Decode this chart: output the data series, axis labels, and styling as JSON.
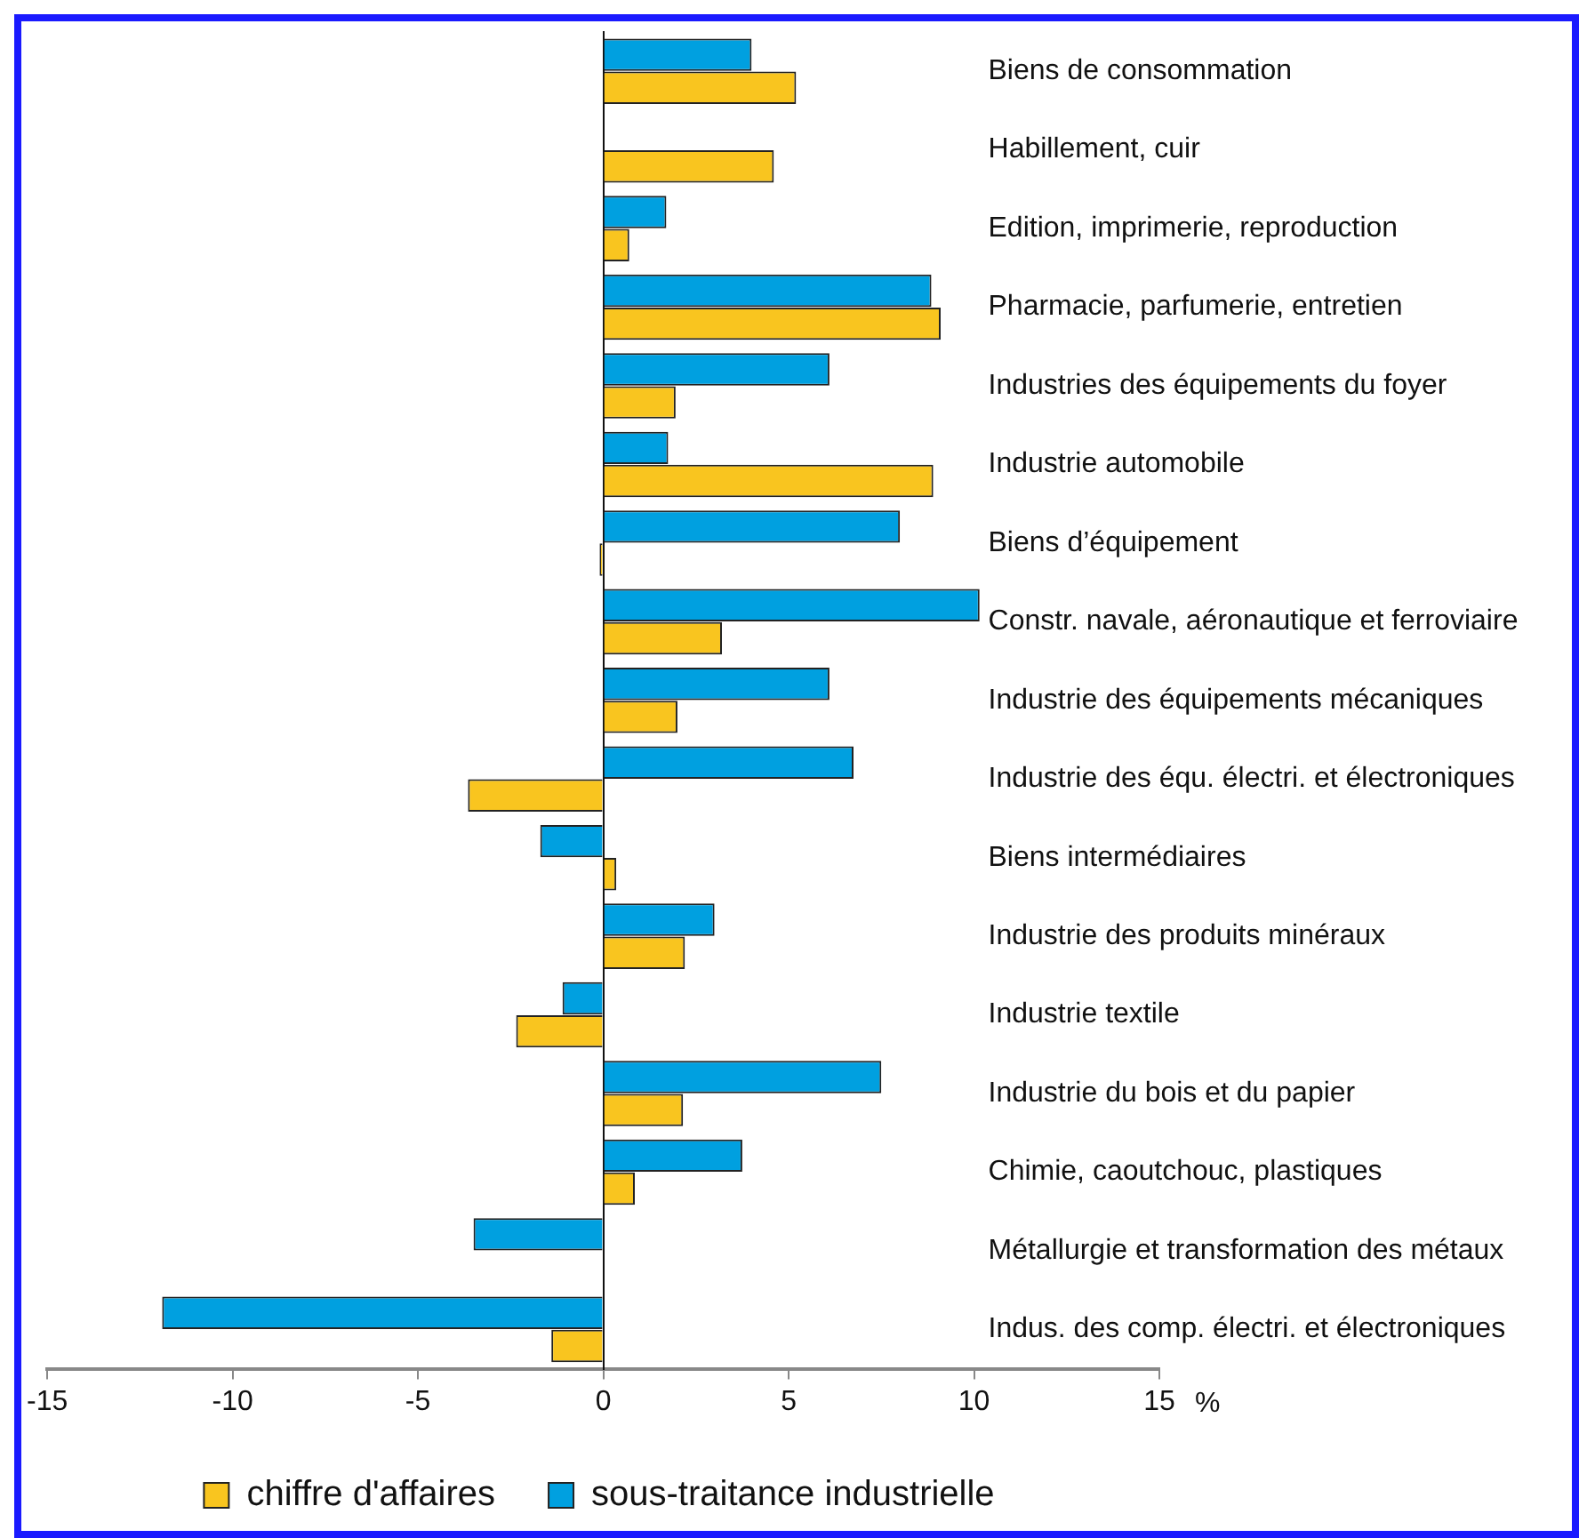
{
  "chart_data": {
    "type": "bar",
    "orientation": "horizontal",
    "xlabel": "%",
    "categories": [
      "Biens de consommation",
      "Habillement, cuir",
      "Edition, imprimerie, reproduction",
      "Pharmacie, parfumerie, entretien",
      "Industries des équipements du foyer",
      "Industrie automobile",
      "Biens d’équipement",
      "Constr. navale, aéronautique et ferroviaire",
      "Industrie des équipements mécaniques",
      "Industrie des équ. électri. et électroniques",
      "Biens intermédiaires",
      "Industrie des produits minéraux",
      "Industrie textile",
      "Industrie du bois et du papier",
      "Chimie, caoutchouc, plastiques",
      "Métallurgie et transformation des métaux",
      "Indus. des comp. électri. et électroniques"
    ],
    "series": [
      {
        "name": "sous-traitance industrielle",
        "color": "#00a0e0",
        "values": [
          4.0,
          null,
          1.7,
          8.85,
          6.1,
          1.75,
          8.0,
          10.15,
          6.1,
          6.75,
          -1.7,
          3.0,
          -1.1,
          7.5,
          3.75,
          -3.5,
          -11.9
        ]
      },
      {
        "name": "chiffre d'affaires",
        "color": "#f9c51f",
        "values": [
          5.2,
          4.6,
          0.7,
          9.1,
          1.95,
          8.9,
          -0.1,
          3.2,
          2.0,
          -3.65,
          0.35,
          2.2,
          -2.35,
          2.15,
          0.85,
          null,
          -1.4
        ]
      }
    ],
    "xlim": [
      -15,
      15
    ],
    "xticks": [
      -15,
      -10,
      -5,
      0,
      5,
      10,
      15
    ],
    "legend": "bottom"
  }
}
